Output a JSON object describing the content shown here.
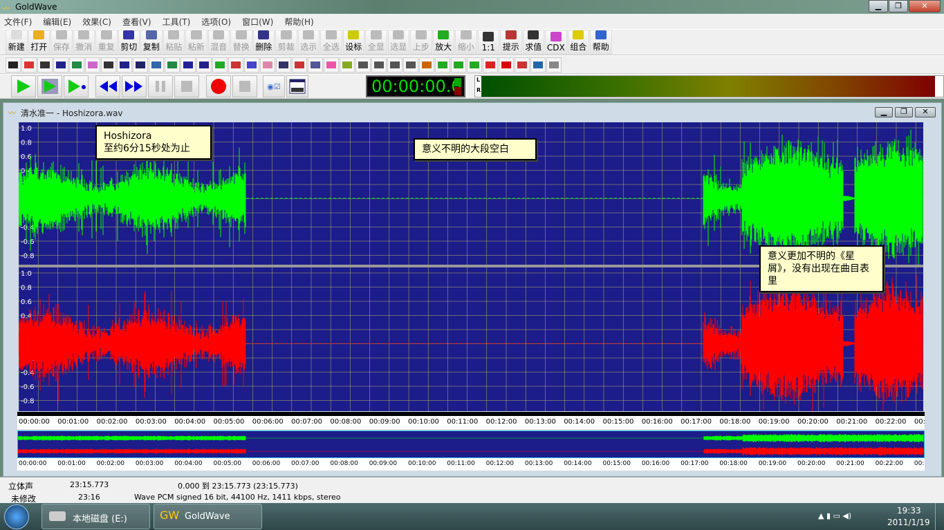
{
  "app": {
    "title": "GoldWave"
  },
  "menu": [
    "文件(F)",
    "编辑(E)",
    "效果(C)",
    "查看(V)",
    "工具(T)",
    "选项(O)",
    "窗口(W)",
    "帮助(H)"
  ],
  "toolbar": [
    {
      "label": "新建",
      "icon": "new-file",
      "enabled": true
    },
    {
      "label": "打开",
      "icon": "open-folder",
      "enabled": true
    },
    {
      "label": "保存",
      "icon": "save",
      "enabled": false
    },
    {
      "label": "撤消",
      "icon": "undo",
      "enabled": false
    },
    {
      "label": "重复",
      "icon": "redo",
      "enabled": false
    },
    {
      "label": "剪切",
      "icon": "scissors",
      "enabled": true
    },
    {
      "label": "复制",
      "icon": "copy",
      "enabled": true
    },
    {
      "label": "粘贴",
      "icon": "paste",
      "enabled": false
    },
    {
      "label": "粘新",
      "icon": "paste-new",
      "enabled": false
    },
    {
      "label": "混音",
      "icon": "mix",
      "enabled": false
    },
    {
      "label": "替换",
      "icon": "replace",
      "enabled": false
    },
    {
      "label": "删除",
      "icon": "delete",
      "enabled": true
    },
    {
      "label": "剪裁",
      "icon": "trim",
      "enabled": false
    },
    {
      "label": "选示",
      "icon": "select-view",
      "enabled": false
    },
    {
      "label": "全选",
      "icon": "select-all",
      "enabled": false
    },
    {
      "label": "设标",
      "icon": "set-marker",
      "enabled": true
    },
    {
      "label": "全显",
      "icon": "zoom-all",
      "enabled": false
    },
    {
      "label": "选显",
      "icon": "zoom-selection",
      "enabled": false
    },
    {
      "label": "上步",
      "icon": "zoom-previous",
      "enabled": false
    },
    {
      "label": "放大",
      "icon": "zoom-in",
      "enabled": true
    },
    {
      "label": "缩小",
      "icon": "zoom-out",
      "enabled": false
    },
    {
      "label": "1:1",
      "icon": "zoom-1-1",
      "enabled": true
    },
    {
      "label": "提示",
      "icon": "cue",
      "enabled": true
    },
    {
      "label": "求值",
      "icon": "evaluate",
      "enabled": true
    },
    {
      "label": "CDX",
      "icon": "cd",
      "enabled": true
    },
    {
      "label": "组合",
      "icon": "combine",
      "enabled": true
    },
    {
      "label": "帮助",
      "icon": "help",
      "enabled": true
    }
  ],
  "transport": {
    "time": "00:00:00.0",
    "meter_labels": [
      "L",
      "R"
    ]
  },
  "document": {
    "title": "清水准一 - Hoshizora.wav"
  },
  "waveform": {
    "y_ticks": [
      "1.0",
      "0.8",
      "0.6",
      "0.4",
      "0.2",
      "0.0",
      "-0.2",
      "-0.4",
      "-0.6",
      "-0.8"
    ],
    "time_ticks": [
      "00:00:00",
      "00:01:00",
      "00:02:00",
      "00:03:00",
      "00:04:00",
      "00:05:00",
      "00:06:00",
      "00:07:00",
      "00:08:00",
      "00:09:00",
      "00:10:00",
      "00:11:00",
      "00:12:00",
      "00:13:00",
      "00:14:00",
      "00:15:00",
      "00:16:00",
      "00:17:00",
      "00:18:00",
      "00:19:00",
      "00:20:00",
      "00:21:00",
      "00:22:00",
      "00:"
    ],
    "left_color": "#00ff00",
    "right_color": "#ff0000",
    "background": "#1c1c8a",
    "total_duration_s": 1395.773,
    "active_ranges_min": [
      [
        0,
        5.85
      ],
      [
        17.6,
        23.26
      ]
    ]
  },
  "notes": {
    "n1": "Hoshizora\n至约6分15秒处为止",
    "n2": "意义不明的大段空白",
    "n3": "意义更加不明的《星屑》，没有出现在曲目表里"
  },
  "status": {
    "channels": "立体声",
    "length": "23:15.773",
    "selection": "0.000 到 23:15.773 (23:15.773)",
    "modified": "未修改",
    "duration": "23:16",
    "format": "Wave PCM signed 16 bit, 44100 Hz, 1411 kbps, stereo"
  },
  "taskbar": {
    "items": [
      "本地磁盘 (E:)",
      "GoldWave"
    ],
    "time": "19:33",
    "date": "2011/1/19"
  }
}
